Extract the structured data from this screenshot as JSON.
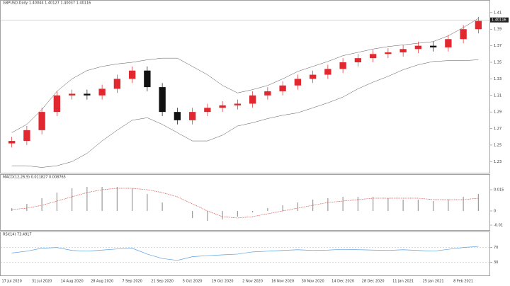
{
  "chart_data": [
    {
      "type": "candlestick",
      "title": "GBPUSD,Daily 1.40044 1.40127 1.40037 1.40116",
      "categories": [
        "17 Jul 2020",
        null,
        "31 Jul 2020",
        null,
        "14 Aug 2020",
        null,
        "28 Aug 2020",
        null,
        "7 Sep 2020",
        null,
        "21 Sep 2020",
        null,
        "5 Oct 2020",
        null,
        "19 Oct 2020",
        null,
        "2 Nov 2020",
        null,
        "16 Nov 2020",
        null,
        "30 Nov 2020",
        null,
        "14 Dec 2020",
        null,
        "28 Dec 2020",
        null,
        "11 Jan 2021",
        null,
        "25 Jan 2021",
        null,
        "8 Feb 2021",
        null
      ],
      "open": [
        1.252,
        1.255,
        1.268,
        1.29,
        1.31,
        1.312,
        1.31,
        1.318,
        1.33,
        1.34,
        1.32,
        1.29,
        1.28,
        1.29,
        1.295,
        1.298,
        1.3,
        1.31,
        1.315,
        1.322,
        1.33,
        1.335,
        1.342,
        1.35,
        1.355,
        1.36,
        1.362,
        1.366,
        1.37,
        1.368,
        1.378,
        1.39
      ],
      "high": [
        1.26,
        1.273,
        1.295,
        1.315,
        1.317,
        1.317,
        1.323,
        1.335,
        1.345,
        1.345,
        1.325,
        1.295,
        1.295,
        1.3,
        1.303,
        1.305,
        1.315,
        1.32,
        1.327,
        1.335,
        1.34,
        1.347,
        1.355,
        1.36,
        1.365,
        1.367,
        1.371,
        1.375,
        1.375,
        1.383,
        1.395,
        1.405
      ],
      "low": [
        1.247,
        1.25,
        1.263,
        1.285,
        1.305,
        1.305,
        1.305,
        1.313,
        1.325,
        1.315,
        1.285,
        1.275,
        1.275,
        1.285,
        1.29,
        1.293,
        1.295,
        1.305,
        1.31,
        1.317,
        1.325,
        1.33,
        1.337,
        1.345,
        1.35,
        1.355,
        1.357,
        1.361,
        1.363,
        1.363,
        1.373,
        1.385
      ],
      "close": [
        1.255,
        1.268,
        1.29,
        1.31,
        1.312,
        1.31,
        1.318,
        1.33,
        1.34,
        1.32,
        1.29,
        1.28,
        1.29,
        1.295,
        1.298,
        1.3,
        1.31,
        1.315,
        1.322,
        1.33,
        1.335,
        1.342,
        1.35,
        1.355,
        1.36,
        1.362,
        1.366,
        1.37,
        1.368,
        1.378,
        1.39,
        1.4
      ],
      "up_color": "#e0282e",
      "down_color": "#111111",
      "bands": [
        {
          "color": "#555555",
          "values": [
            1.265,
            1.275,
            1.293,
            1.315,
            1.33,
            1.34,
            1.345,
            1.348,
            1.35,
            1.353,
            1.355,
            1.355,
            1.345,
            1.335,
            1.322,
            1.313,
            1.317,
            1.322,
            1.33,
            1.339,
            1.345,
            1.351,
            1.358,
            1.362,
            1.366,
            1.369,
            1.371,
            1.373,
            1.375,
            1.382,
            1.392,
            1.403
          ]
        },
        {
          "color": "#555555",
          "values": [
            1.225,
            1.225,
            1.223,
            1.225,
            1.23,
            1.24,
            1.255,
            1.268,
            1.28,
            1.283,
            1.275,
            1.265,
            1.255,
            1.255,
            1.262,
            1.273,
            1.277,
            1.282,
            1.286,
            1.289,
            1.295,
            1.301,
            1.308,
            1.318,
            1.326,
            1.333,
            1.341,
            1.347,
            1.351,
            1.352,
            1.352,
            1.353
          ]
        }
      ],
      "current_price": 1.40116,
      "ylim": [
        1.22,
        1.415
      ],
      "yticks": [
        1.23,
        1.25,
        1.27,
        1.29,
        1.31,
        1.33,
        1.35,
        1.37,
        1.39,
        1.41
      ]
    },
    {
      "type": "macd",
      "title": "MACD(12,26,9) 0.011827 0.008765",
      "values": [
        0.002,
        0.005,
        0.009,
        0.013,
        0.016,
        0.017,
        0.017,
        0.017,
        0.016,
        0.012,
        0.006,
        0,
        -0.005,
        -0.007,
        -0.006,
        -0.004,
        -0.001,
        0.002,
        0.004,
        0.006,
        0.008,
        0.009,
        0.01,
        0.01,
        0.01,
        0.009,
        0.008,
        0.008,
        0.007,
        0.008,
        0.01,
        0.012
      ],
      "color": "#9a9a9a",
      "signal": {
        "color": "#d9534f",
        "values": [
          0.001,
          0.002,
          0.004,
          0.007,
          0.01,
          0.013,
          0.015,
          0.016,
          0.016,
          0.015,
          0.013,
          0.01,
          0.005,
          0,
          -0.004,
          -0.005,
          -0.004,
          -0.002,
          0,
          0.002,
          0.004,
          0.006,
          0.007,
          0.008,
          0.009,
          0.009,
          0.009,
          0.009,
          0.008,
          0.008,
          0.008,
          0.009
        ]
      },
      "ylim": [
        -0.012,
        0.021
      ],
      "yticks": [
        0.015,
        0,
        -0.01
      ]
    },
    {
      "type": "line",
      "title": "RSI(14) 73.4917",
      "values": [
        55,
        60,
        68,
        70,
        62,
        60,
        63,
        66,
        68,
        52,
        40,
        35,
        45,
        48,
        50,
        52,
        58,
        60,
        62,
        64,
        62,
        63,
        65,
        64,
        63,
        62,
        64,
        62,
        60,
        65,
        70,
        73
      ],
      "color": "#5aa0e0",
      "ylim": [
        0,
        100
      ],
      "yticks": [
        30,
        70
      ]
    }
  ]
}
